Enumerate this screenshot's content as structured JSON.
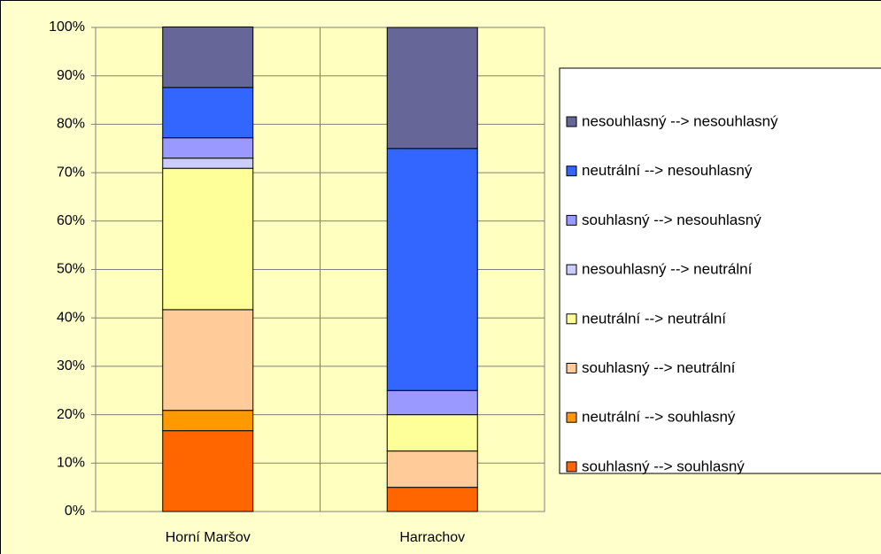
{
  "chart_data": {
    "type": "stacked_bar",
    "categories": [
      "Horní Maršov",
      "Harrachov"
    ],
    "series": [
      {
        "name": "souhlasný --> souhlasný",
        "color": "#ff6600",
        "values": [
          16.7,
          5
        ]
      },
      {
        "name": "neutrální --> souhlasný",
        "color": "#ff9900",
        "values": [
          4.2,
          0
        ]
      },
      {
        "name": "souhlasný --> neutrální",
        "color": "#ffcc99",
        "values": [
          20.8,
          7.5
        ]
      },
      {
        "name": "neutrální --> neutrální",
        "color": "#ffff99",
        "values": [
          29.2,
          7.5
        ]
      },
      {
        "name": "nesouhlasný --> neutrální",
        "color": "#ccccff",
        "values": [
          2.1,
          0
        ]
      },
      {
        "name": "souhlasný --> nesouhlasný",
        "color": "#9999ff",
        "values": [
          4.2,
          5
        ]
      },
      {
        "name": "neutrální --> nesouhlasný",
        "color": "#3366ff",
        "values": [
          10.4,
          50
        ]
      },
      {
        "name": "nesouhlasný --> nesouhlasný",
        "color": "#666699",
        "values": [
          12.5,
          25
        ]
      }
    ],
    "ylim": [
      0,
      100
    ],
    "yticks": [
      {
        "value": 0,
        "label": "0%"
      },
      {
        "value": 10,
        "label": "10%"
      },
      {
        "value": 20,
        "label": "20%"
      },
      {
        "value": 30,
        "label": "30%"
      },
      {
        "value": 40,
        "label": "40%"
      },
      {
        "value": 50,
        "label": "50%"
      },
      {
        "value": 60,
        "label": "60%"
      },
      {
        "value": 70,
        "label": "70%"
      },
      {
        "value": 80,
        "label": "80%"
      },
      {
        "value": 90,
        "label": "90%"
      },
      {
        "value": 100,
        "label": "100%"
      }
    ],
    "grid": true,
    "legend": "right"
  }
}
